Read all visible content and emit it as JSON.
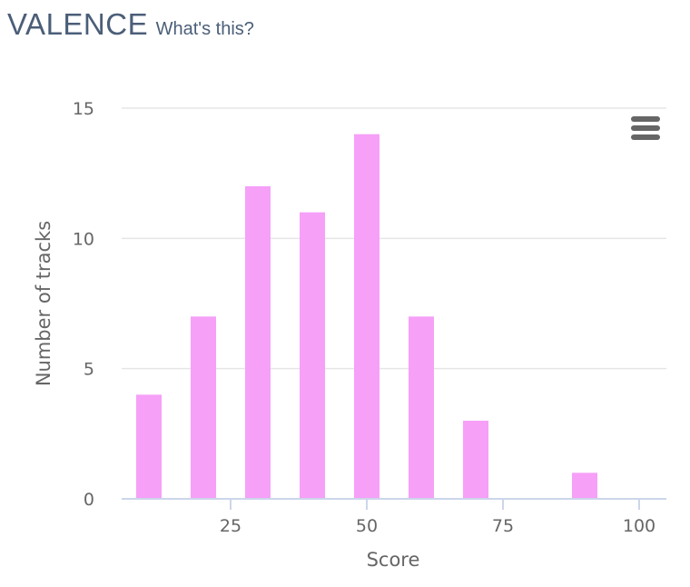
{
  "header": {
    "title": "VALENCE",
    "help_link": "What's this?"
  },
  "chart_menu": {
    "icon": "hamburger-menu-icon"
  },
  "chart_data": {
    "type": "bar",
    "xlabel": "Score",
    "ylabel": "Number of tracks",
    "bar_color": "#f6a0f8",
    "grid_color": "#e6e6e6",
    "axis_color": "#ccd6eb",
    "xlim": [
      5,
      105
    ],
    "ylim": [
      0,
      15
    ],
    "x_ticks": [
      25,
      50,
      75,
      100
    ],
    "y_ticks": [
      0,
      5,
      10,
      15
    ],
    "grid": true,
    "bars": [
      {
        "x": 10,
        "value": 4
      },
      {
        "x": 20,
        "value": 7
      },
      {
        "x": 30,
        "value": 12
      },
      {
        "x": 40,
        "value": 11
      },
      {
        "x": 50,
        "value": 14
      },
      {
        "x": 60,
        "value": 7
      },
      {
        "x": 70,
        "value": 3
      },
      {
        "x": 80,
        "value": 0
      },
      {
        "x": 90,
        "value": 1
      },
      {
        "x": 100,
        "value": 0
      }
    ]
  }
}
